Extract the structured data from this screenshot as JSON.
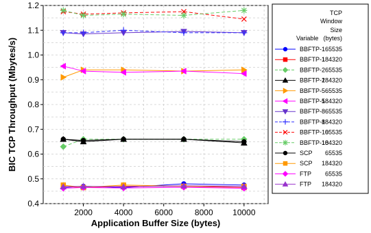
{
  "chart_data": {
    "type": "line",
    "title": "",
    "xlabel": "Application Buffer Size (bytes)",
    "ylabel": "BIC TCP Throughput (Mbytes/s)",
    "xlim": [
      0,
      11200
    ],
    "ylim": [
      0.4,
      1.2
    ],
    "xticks": [
      2000,
      4000,
      6000,
      8000,
      10000
    ],
    "yticks": [
      0.4,
      0.5,
      0.6,
      0.7,
      0.8,
      0.9,
      1.0,
      1.1,
      1.2
    ],
    "grid": true,
    "legend_position": "right",
    "legend_headers": {
      "variable": "Variable",
      "window_line1": "TCP",
      "window_line2": "Window",
      "window_line3": "Size",
      "window_line4": "(bytes)"
    },
    "x": [
      1000,
      2000,
      4000,
      7000,
      10000
    ],
    "series": [
      {
        "name": "BBFTP-1",
        "window": "65535",
        "color": "#0000ff",
        "marker": "circle",
        "dash": "solid",
        "values": [
          0.465,
          0.47,
          0.465,
          0.48,
          0.475
        ]
      },
      {
        "name": "BBFTP-1",
        "window": "184320",
        "color": "#ff0000",
        "marker": "square",
        "dash": "solid",
        "values": [
          0.47,
          0.465,
          0.47,
          0.47,
          0.465
        ]
      },
      {
        "name": "BBFTP-2",
        "window": "65535",
        "color": "#66cc66",
        "marker": "diamond",
        "dash": "dashed",
        "values": [
          0.63,
          0.66,
          0.66,
          0.66,
          0.66
        ]
      },
      {
        "name": "BBFTP-2",
        "window": "184320",
        "color": "#000000",
        "marker": "triangle-up",
        "dash": "solid",
        "values": [
          0.66,
          0.65,
          0.66,
          0.66,
          0.645
        ]
      },
      {
        "name": "BBFTP-5",
        "window": "65535",
        "color": "#ff9900",
        "marker": "triangle-right",
        "dash": "solid",
        "values": [
          0.91,
          0.94,
          0.94,
          0.935,
          0.94
        ]
      },
      {
        "name": "BBFTP-5",
        "window": "184320",
        "color": "#ff00ff",
        "marker": "triangle-left",
        "dash": "solid",
        "values": [
          0.955,
          0.935,
          0.93,
          0.935,
          0.925
        ]
      },
      {
        "name": "BBFTP-8",
        "window": "65535",
        "color": "#6633cc",
        "marker": "triangle-down",
        "dash": "solid",
        "values": [
          1.09,
          1.085,
          1.09,
          1.095,
          1.09
        ]
      },
      {
        "name": "BBFTP-8",
        "window": "184320",
        "color": "#3333ff",
        "marker": "plus",
        "dash": "dashed",
        "values": [
          1.09,
          1.09,
          1.1,
          1.09,
          1.09
        ]
      },
      {
        "name": "BBFTP-10",
        "window": "65535",
        "color": "#ff0000",
        "marker": "x",
        "dash": "dashed",
        "values": [
          1.175,
          1.165,
          1.17,
          1.175,
          1.145
        ]
      },
      {
        "name": "BBFTP-10",
        "window": "184320",
        "color": "#66cc66",
        "marker": "star",
        "dash": "dashed",
        "values": [
          1.18,
          1.16,
          1.165,
          1.16,
          1.18
        ]
      },
      {
        "name": "SCP",
        "window": "65535",
        "color": "#000000",
        "marker": "circle",
        "dash": "solid",
        "values": [
          0.66,
          0.655,
          0.66,
          0.66,
          0.65
        ]
      },
      {
        "name": "SCP",
        "window": "184320",
        "color": "#ff9900",
        "marker": "square",
        "dash": "solid",
        "values": [
          0.475,
          0.465,
          0.475,
          0.47,
          0.47
        ]
      },
      {
        "name": "FTP",
        "window": "65535",
        "color": "#ff00ff",
        "marker": "diamond",
        "dash": "solid",
        "values": [
          0.462,
          0.465,
          0.463,
          0.466,
          0.462
        ]
      },
      {
        "name": "FTP",
        "window": "184320",
        "color": "#9933cc",
        "marker": "triangle-up",
        "dash": "solid",
        "values": [
          0.468,
          0.47,
          0.468,
          0.472,
          0.47
        ]
      }
    ]
  }
}
